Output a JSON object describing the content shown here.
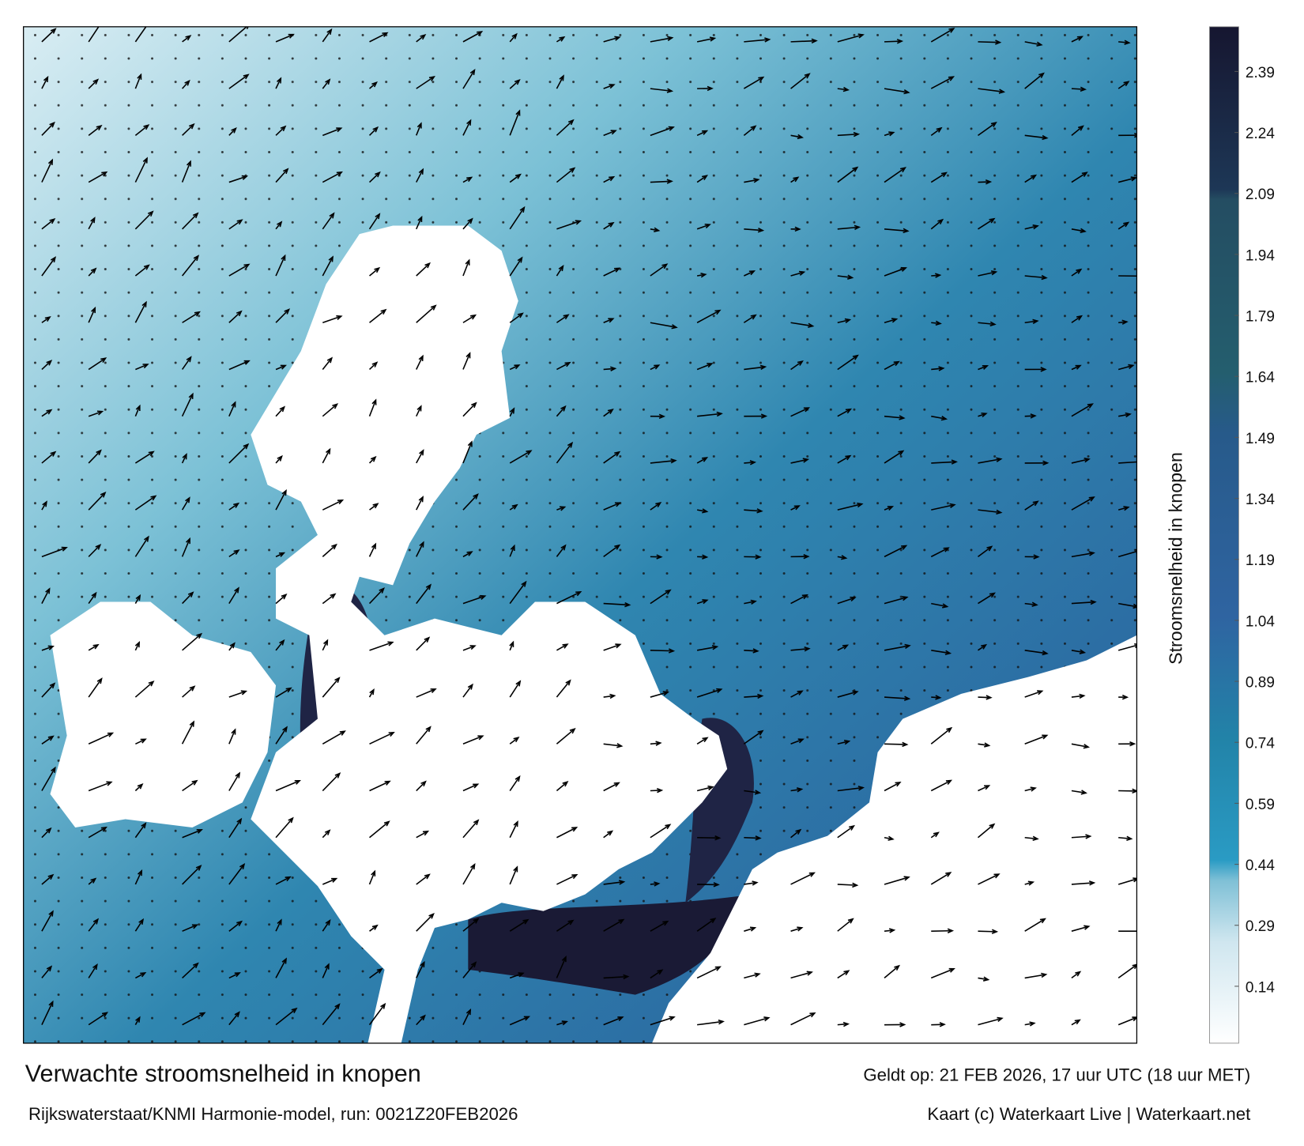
{
  "title": "Verwachte stroomsnelheid in knopen",
  "subtitle": "Rijkswaterstaat/KNMI Harmonie-model, run: 0021Z20FEB2026",
  "valid_time": "Geldt op: 21 FEB 2026, 17 uur UTC (18 uur MET)",
  "credit": "Kaart (c) Waterkaart Live | Waterkaart.net",
  "colorbar": {
    "label": "Stroomsnelheid in knopen",
    "lim": [
      0,
      2.5
    ],
    "ticks": [
      0.14,
      0.29,
      0.44,
      0.59,
      0.74,
      0.89,
      1.04,
      1.19,
      1.34,
      1.49,
      1.64,
      1.79,
      1.94,
      2.09,
      2.24,
      2.39
    ]
  }
}
